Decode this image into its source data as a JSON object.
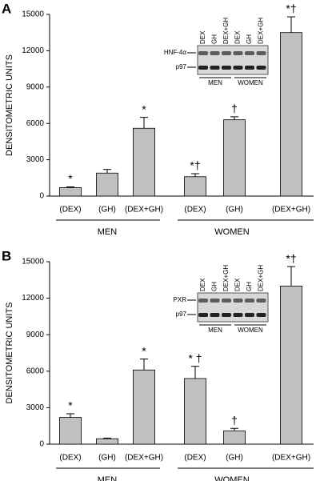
{
  "chart_data": [
    {
      "type": "bar",
      "panel_label": "A",
      "ylabel": "DENSITOMETRIC UNITS",
      "categories": [
        "(DEX)",
        "(GH)",
        "(DEX+GH)",
        "(DEX)",
        "(GH)",
        "(DEX+GH)"
      ],
      "groups": [
        "MEN",
        "WOMEN"
      ],
      "values": [
        700,
        1900,
        5600,
        1600,
        6300,
        13500
      ],
      "errors": [
        60,
        300,
        900,
        250,
        250,
        1300
      ],
      "annotations": [
        "*",
        null,
        "*",
        "*†",
        "†",
        "*†"
      ],
      "color": "#c0c0c0",
      "ylim": [
        0,
        15000
      ],
      "yticks": [
        0,
        3000,
        6000,
        9000,
        12000,
        15000
      ],
      "inset": {
        "target": "HNF-4α",
        "loading": "p97",
        "lanes": [
          "DEX",
          "GH",
          "DEX+GH",
          "DEX",
          "GH",
          "DEX+GH"
        ],
        "groups": [
          "MEN",
          "WOMEN"
        ]
      }
    },
    {
      "type": "bar",
      "panel_label": "B",
      "ylabel": "DENSITOMETRIC UNITS",
      "categories": [
        "(DEX)",
        "(GH)",
        "(DEX+GH)",
        "(DEX)",
        "(GH)",
        "(DEX+GH)"
      ],
      "groups": [
        "MEN",
        "WOMEN"
      ],
      "values": [
        2200,
        450,
        6100,
        5400,
        1100,
        13000
      ],
      "errors": [
        300,
        50,
        900,
        1000,
        200,
        1600
      ],
      "annotations": [
        "*",
        null,
        "*",
        "* †",
        "†",
        "*†"
      ],
      "color": "#c0c0c0",
      "ylim": [
        0,
        15000
      ],
      "yticks": [
        0,
        3000,
        6000,
        9000,
        12000,
        15000
      ],
      "inset": {
        "target": "PXR",
        "loading": "p97",
        "lanes": [
          "DEX",
          "GH",
          "DEX+GH",
          "DEX",
          "GH",
          "DEX+GH"
        ],
        "groups": [
          "MEN",
          "WOMEN"
        ]
      }
    }
  ]
}
